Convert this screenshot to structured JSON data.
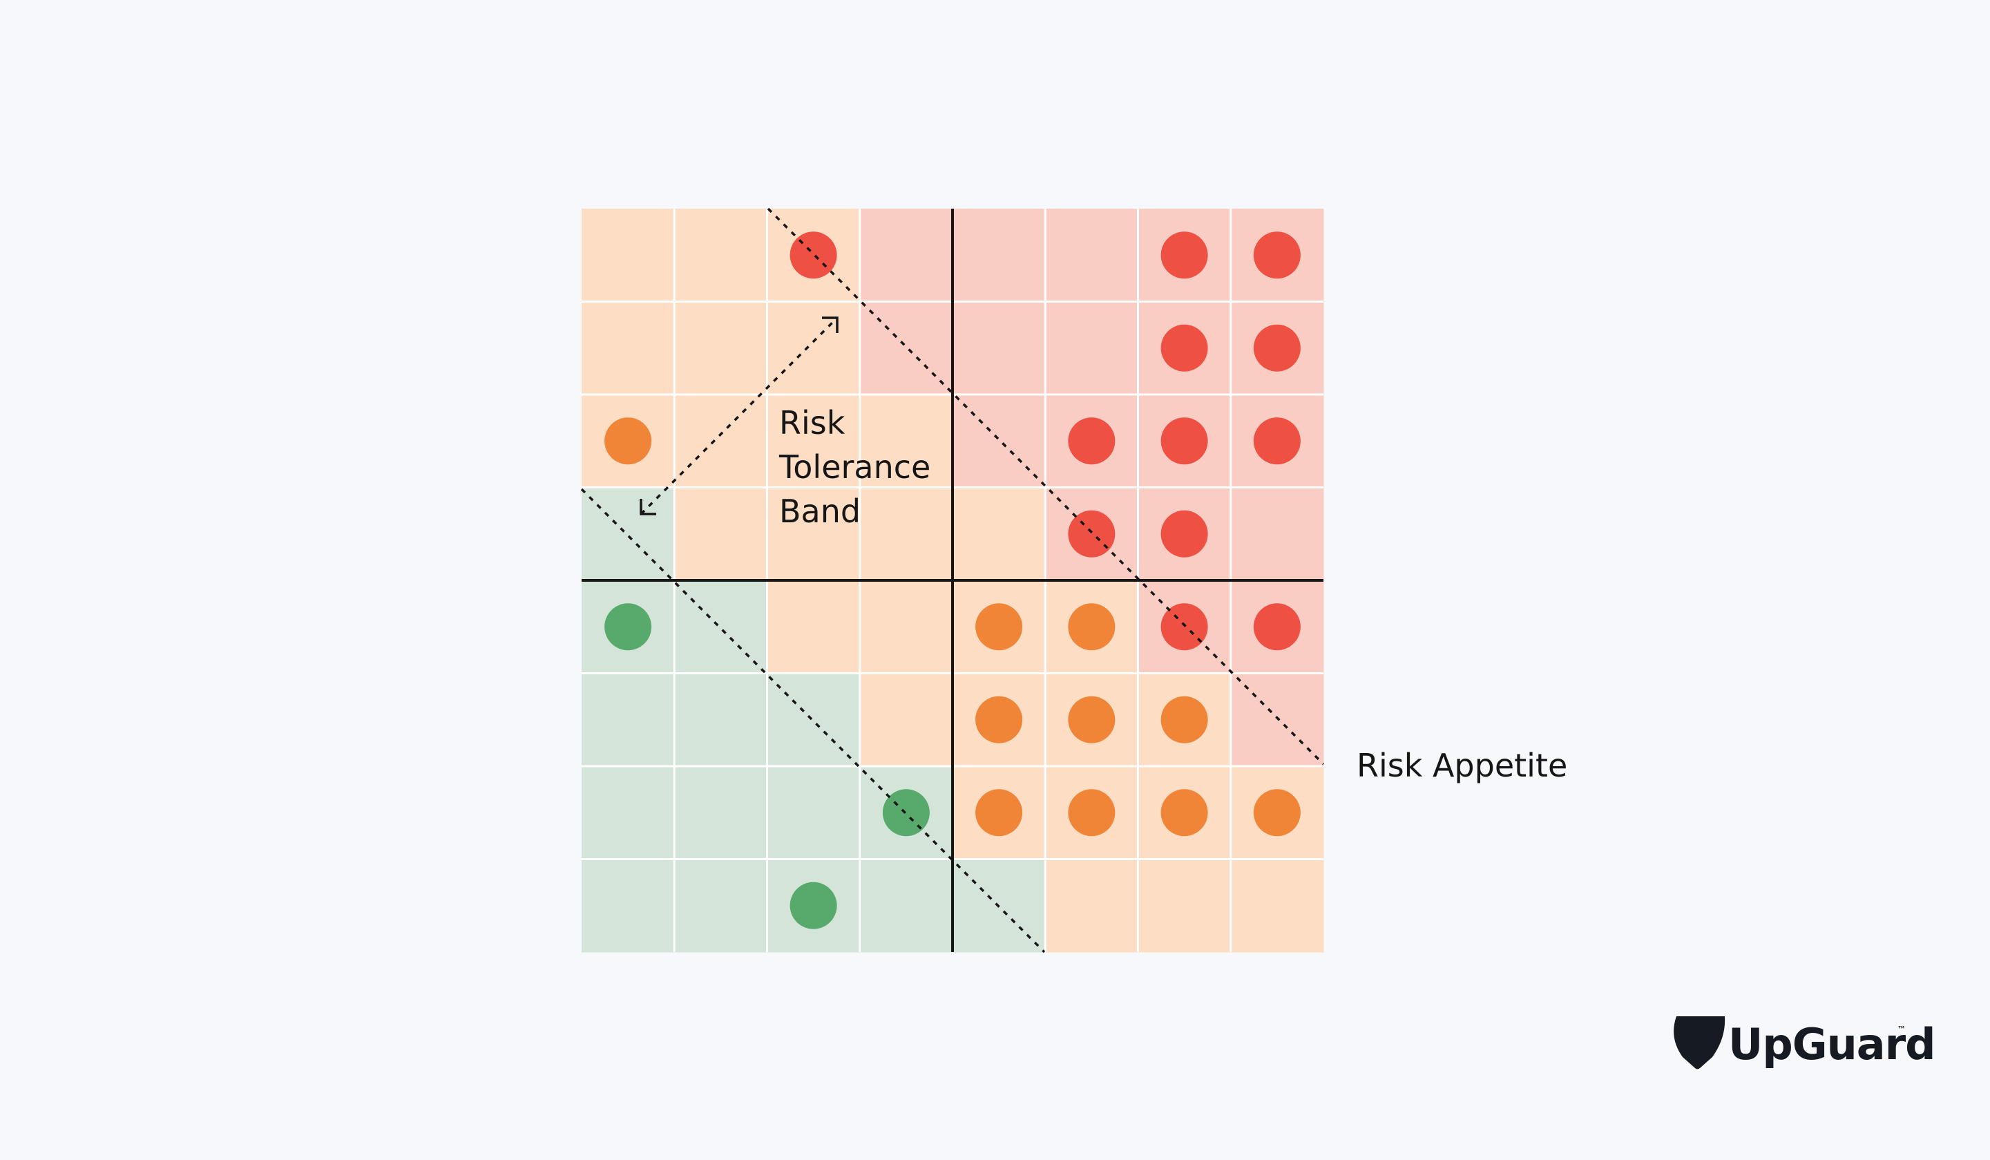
{
  "diagram": {
    "rows": 8,
    "cols": 8,
    "colors": {
      "green_zone": "#d4e4d8",
      "orange_zone": "#fddec5",
      "red_zone": "#facdc4",
      "green_dot": "#57aa6c",
      "orange_dot": "#f08538",
      "red_dot": "#ee5043",
      "grid_line": "#ffffff",
      "axis_line": "#161616",
      "dashed_line": "#161616",
      "background": "#f6f8fb"
    },
    "zones": [
      [
        "orange",
        "orange",
        "orange",
        "red",
        "red",
        "red",
        "red",
        "red"
      ],
      [
        "orange",
        "orange",
        "orange",
        "red",
        "red",
        "red",
        "red",
        "red"
      ],
      [
        "orange",
        "orange",
        "orange",
        "orange",
        "red",
        "red",
        "red",
        "red"
      ],
      [
        "green",
        "orange",
        "orange",
        "orange",
        "orange",
        "red",
        "red",
        "red"
      ],
      [
        "green",
        "green",
        "orange",
        "orange",
        "orange",
        "orange",
        "red",
        "red"
      ],
      [
        "green",
        "green",
        "green",
        "orange",
        "orange",
        "orange",
        "orange",
        "red"
      ],
      [
        "green",
        "green",
        "green",
        "green",
        "orange",
        "orange",
        "orange",
        "orange"
      ],
      [
        "green",
        "green",
        "green",
        "green",
        "green",
        "orange",
        "orange",
        "orange"
      ]
    ],
    "dots": [
      {
        "row": 0,
        "col": 2,
        "level": "red"
      },
      {
        "row": 0,
        "col": 6,
        "level": "red"
      },
      {
        "row": 0,
        "col": 7,
        "level": "red"
      },
      {
        "row": 1,
        "col": 6,
        "level": "red"
      },
      {
        "row": 1,
        "col": 7,
        "level": "red"
      },
      {
        "row": 2,
        "col": 0,
        "level": "orange"
      },
      {
        "row": 2,
        "col": 5,
        "level": "red"
      },
      {
        "row": 2,
        "col": 6,
        "level": "red"
      },
      {
        "row": 2,
        "col": 7,
        "level": "red"
      },
      {
        "row": 3,
        "col": 5,
        "level": "red"
      },
      {
        "row": 3,
        "col": 6,
        "level": "red"
      },
      {
        "row": 4,
        "col": 0,
        "level": "green"
      },
      {
        "row": 4,
        "col": 4,
        "level": "orange"
      },
      {
        "row": 4,
        "col": 5,
        "level": "orange"
      },
      {
        "row": 4,
        "col": 6,
        "level": "red"
      },
      {
        "row": 4,
        "col": 7,
        "level": "red"
      },
      {
        "row": 5,
        "col": 4,
        "level": "orange"
      },
      {
        "row": 5,
        "col": 5,
        "level": "orange"
      },
      {
        "row": 5,
        "col": 6,
        "level": "orange"
      },
      {
        "row": 6,
        "col": 3,
        "level": "green"
      },
      {
        "row": 6,
        "col": 4,
        "level": "orange"
      },
      {
        "row": 6,
        "col": 5,
        "level": "orange"
      },
      {
        "row": 6,
        "col": 6,
        "level": "orange"
      },
      {
        "row": 6,
        "col": 7,
        "level": "orange"
      },
      {
        "row": 7,
        "col": 2,
        "level": "green"
      }
    ],
    "labels": {
      "tolerance_band_lines": [
        "Risk",
        "Tolerance",
        "Band"
      ],
      "risk_appetite": "Risk Appetite"
    },
    "icons": {
      "band_arrow": "double-headed-arrow-icon"
    }
  },
  "brand": {
    "logo_icon": "guitar-pick-shield-icon",
    "name": "UpGuard",
    "trademark": "™"
  }
}
